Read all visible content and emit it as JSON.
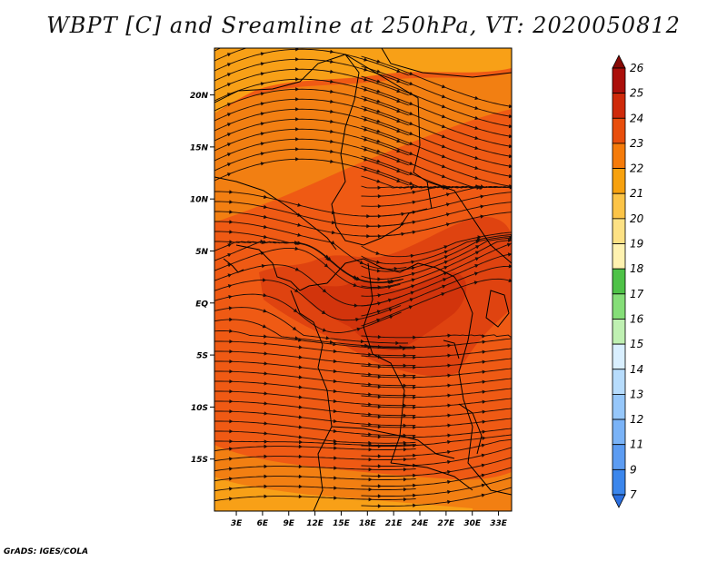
{
  "title": "WBPT [C] and Sreamline at 250hPa, VT: 2020050812",
  "credit": "GrADS: IGES/COLA",
  "map": {
    "lat_labels": [
      "20N",
      "15N",
      "10N",
      "5N",
      "EQ",
      "5S",
      "10S",
      "15S"
    ],
    "lat_values": [
      20,
      15,
      10,
      5,
      0,
      -5,
      -10,
      -15
    ],
    "lon_labels": [
      "3E",
      "6E",
      "9E",
      "12E",
      "15E",
      "18E",
      "21E",
      "24E",
      "27E",
      "30E",
      "33E"
    ],
    "lon_values": [
      3,
      6,
      9,
      12,
      15,
      18,
      21,
      24,
      27,
      30,
      33
    ],
    "lon_range": [
      0.5,
      34.5
    ],
    "lat_range": [
      -20,
      24.5
    ],
    "field": "wet-bulb potential temperature",
    "overlay": "streamlines"
  },
  "colorbar": {
    "levels": [
      "7",
      "9",
      "11",
      "12",
      "13",
      "14",
      "15",
      "16",
      "17",
      "18",
      "19",
      "20",
      "21",
      "22",
      "23",
      "24",
      "25",
      "26"
    ],
    "colors": [
      "#2a6fe0",
      "#3b86ec",
      "#5c9cf2",
      "#7ab3f7",
      "#96c7fa",
      "#b7dcfc",
      "#d9efff",
      "#bff0b2",
      "#85de78",
      "#4ec247",
      "#fff2b0",
      "#fde184",
      "#fcc447",
      "#f7a10e",
      "#f57b0a",
      "#e84e0c",
      "#cf2a0a",
      "#ab0f0a",
      "#870a06"
    ]
  }
}
